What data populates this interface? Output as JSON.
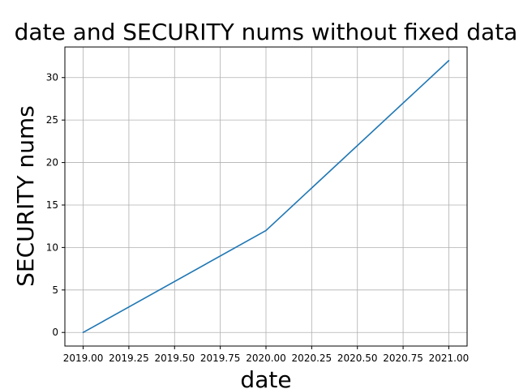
{
  "chart_data": {
    "type": "line",
    "title": "date and SECURITY nums without fixed data",
    "xlabel": "date",
    "ylabel": "SECURITY nums",
    "x": [
      2019.0,
      2020.0,
      2021.0
    ],
    "series": [
      {
        "values": [
          0,
          12,
          32
        ],
        "color": "#1f77b4"
      }
    ],
    "xlim": [
      2018.9,
      2021.1
    ],
    "ylim": [
      -1.6,
      33.6
    ],
    "xticks": [
      2019.0,
      2019.25,
      2019.5,
      2019.75,
      2020.0,
      2020.25,
      2020.5,
      2020.75,
      2021.0
    ],
    "xtick_labels": [
      "2019.00",
      "2019.25",
      "2019.50",
      "2019.75",
      "2020.00",
      "2020.25",
      "2020.50",
      "2020.75",
      "2021.00"
    ],
    "yticks": [
      0,
      5,
      10,
      15,
      20,
      25,
      30
    ],
    "ytick_labels": [
      "0",
      "5",
      "10",
      "15",
      "20",
      "25",
      "30"
    ],
    "grid": true,
    "legend": "none"
  }
}
